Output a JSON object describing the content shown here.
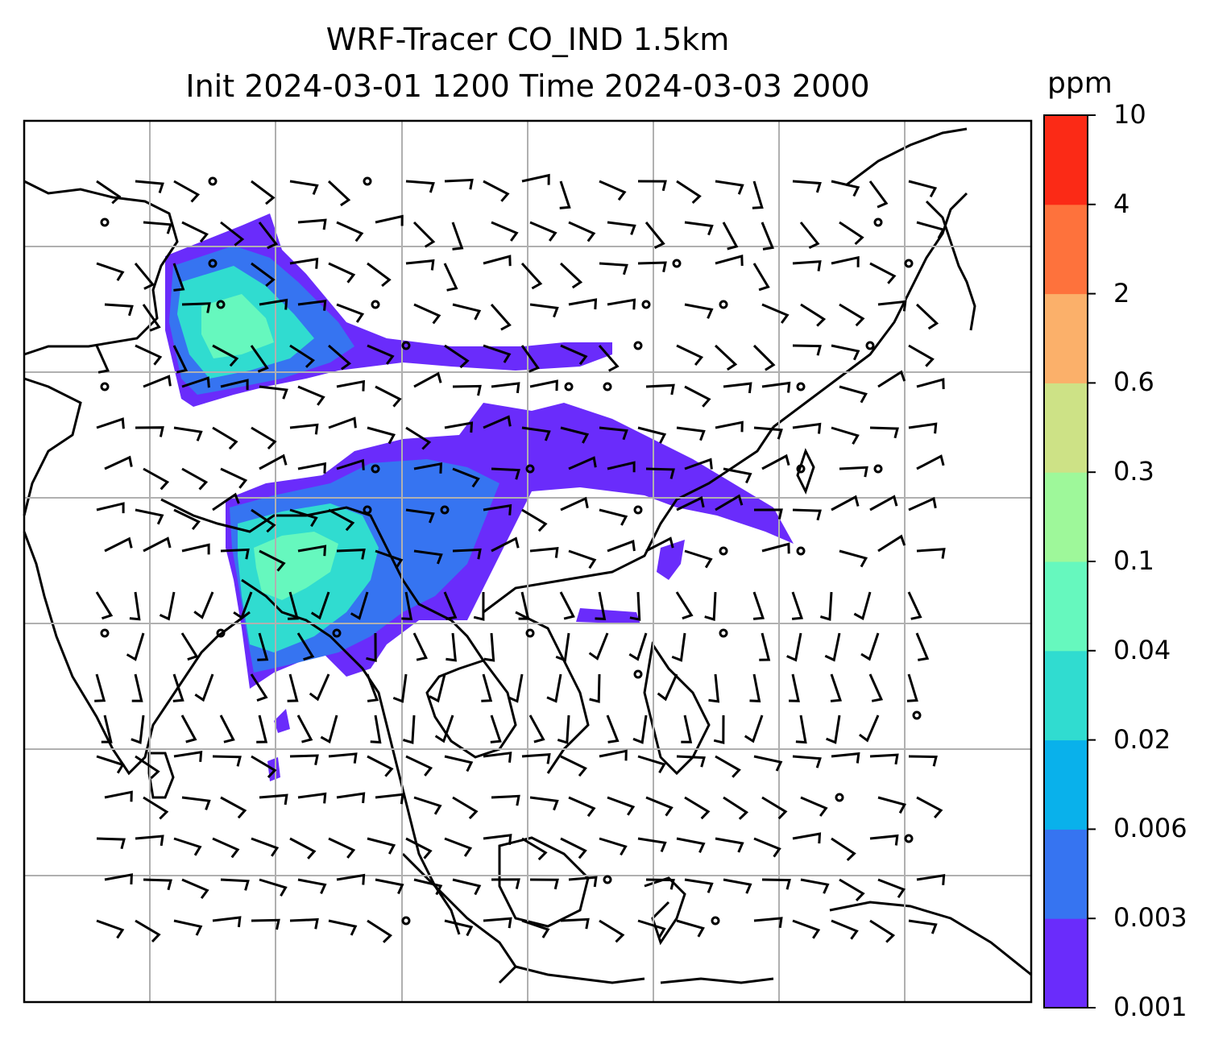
{
  "title": {
    "line1": "WRF-Tracer CO_IND 1.5km",
    "line2": "Init 2024-03-01 1200 Time 2024-03-03 2000"
  },
  "colorbar": {
    "units": "ppm",
    "tick_labels": [
      "0.001",
      "0.003",
      "0.006",
      "0.02",
      "0.04",
      "0.1",
      "0.3",
      "0.6",
      "2",
      "4",
      "10"
    ],
    "colors": [
      "#6a2cfb",
      "#3674f1",
      "#09b1eb",
      "#30dcd0",
      "#66f8be",
      "#9ef89a",
      "#cde286",
      "#fbb06a",
      "#fe723c",
      "#fb2a16"
    ]
  },
  "map": {
    "field": "CO_IND tracer concentration",
    "overlay": "wind barbs",
    "gridlines": true,
    "coastlines": true,
    "colors": {
      "plume_low": "#6a2cfb",
      "plume_mid": "#3674f1",
      "plume_high": "#30dcd0",
      "plume_peak": "#66f8be",
      "grid": "#b0b0b0"
    }
  }
}
